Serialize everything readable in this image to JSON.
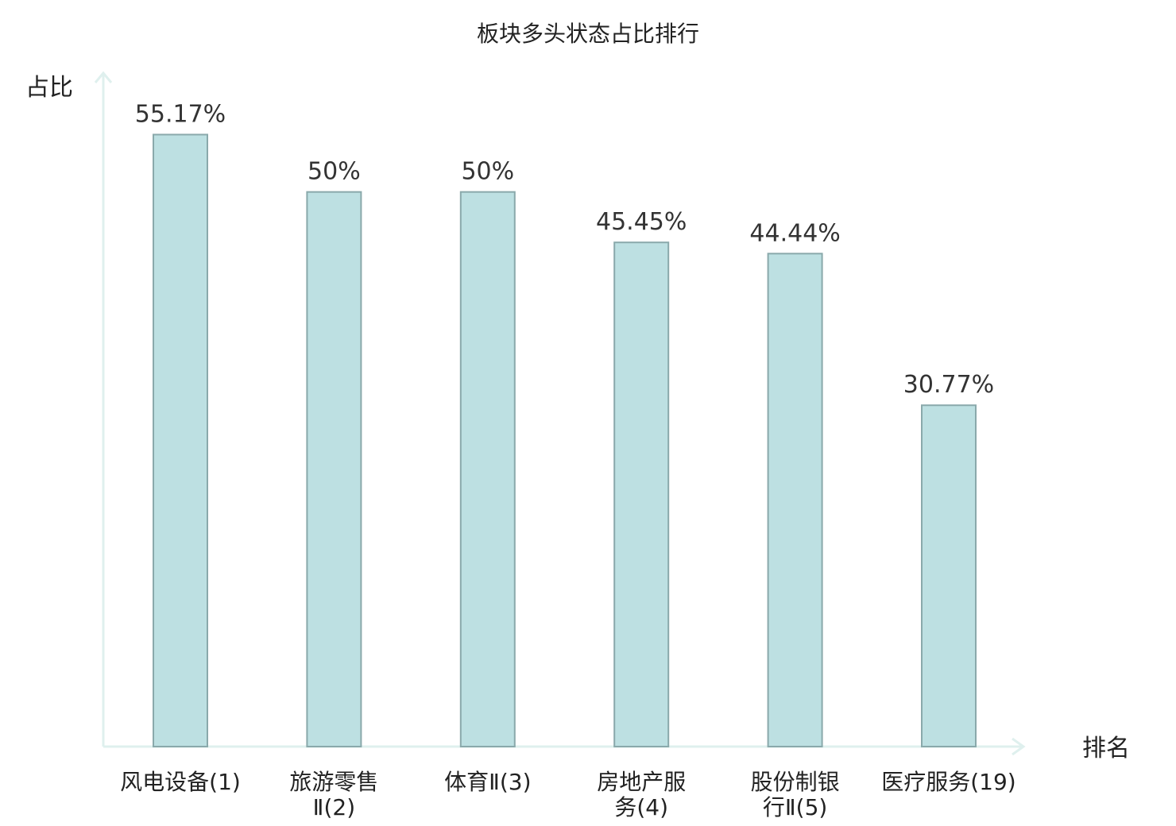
{
  "chart_data": {
    "type": "bar",
    "title": "板块多头状态占比排行",
    "ylabel": "占比",
    "xlabel": "排名",
    "ylim": [
      0,
      60
    ],
    "grid": false,
    "categories": [
      [
        "风电设备(1)"
      ],
      [
        "旅游零售",
        "Ⅱ(2)"
      ],
      [
        "体育Ⅱ(3)"
      ],
      [
        "房地产服",
        "务(4)"
      ],
      [
        "股份制银",
        "行Ⅱ(5)"
      ],
      [
        "医疗服务(19)"
      ]
    ],
    "values": [
      55.17,
      50,
      50,
      45.45,
      44.44,
      30.77
    ],
    "value_labels": [
      "55.17%",
      "50%",
      "50%",
      "45.45%",
      "44.44%",
      "30.77%"
    ],
    "highlight_index": 5,
    "colors": {
      "bar_fill": "#bde0e2",
      "bar_stroke": "#8aa9ab",
      "axis": "#dff0ee",
      "text": "#222222",
      "value_text": "#333333",
      "highlight": "#e8251e"
    }
  }
}
